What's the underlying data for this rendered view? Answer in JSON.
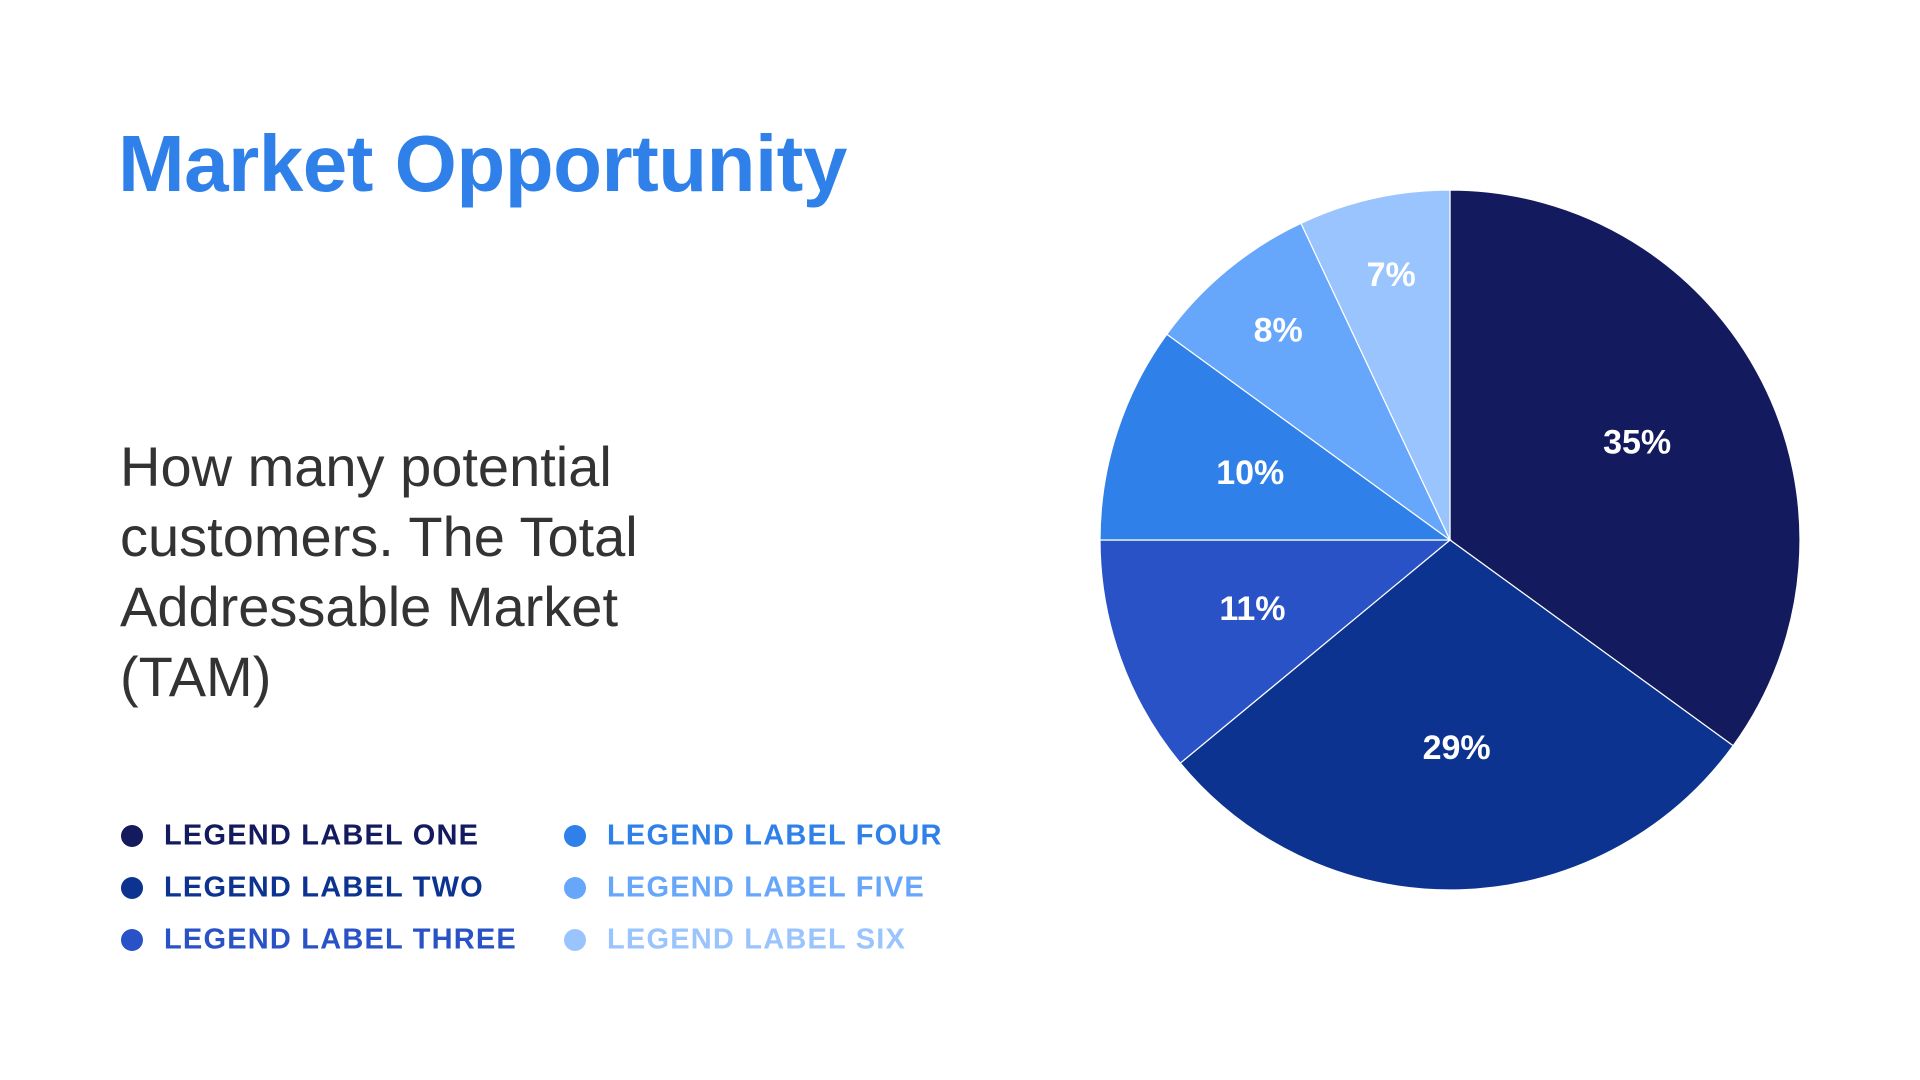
{
  "chart_data": {
    "type": "pie",
    "title": "Market Opportunity",
    "subtitle": "How many potential customers. The Total Addressable Market (TAM)",
    "categories": [
      "LEGEND LABEL ONE",
      "LEGEND LABEL TWO",
      "LEGEND LABEL THREE",
      "LEGEND LABEL FOUR",
      "LEGEND LABEL FIVE",
      "LEGEND LABEL SIX"
    ],
    "values": [
      35,
      29,
      11,
      10,
      8,
      7
    ],
    "value_labels": [
      "35%",
      "29%",
      "11%",
      "10%",
      "8%",
      "7%"
    ],
    "colors": [
      "#131a5e",
      "#0c3390",
      "#2952c6",
      "#2f80e8",
      "#66a6fb",
      "#9ac4fd"
    ]
  }
}
